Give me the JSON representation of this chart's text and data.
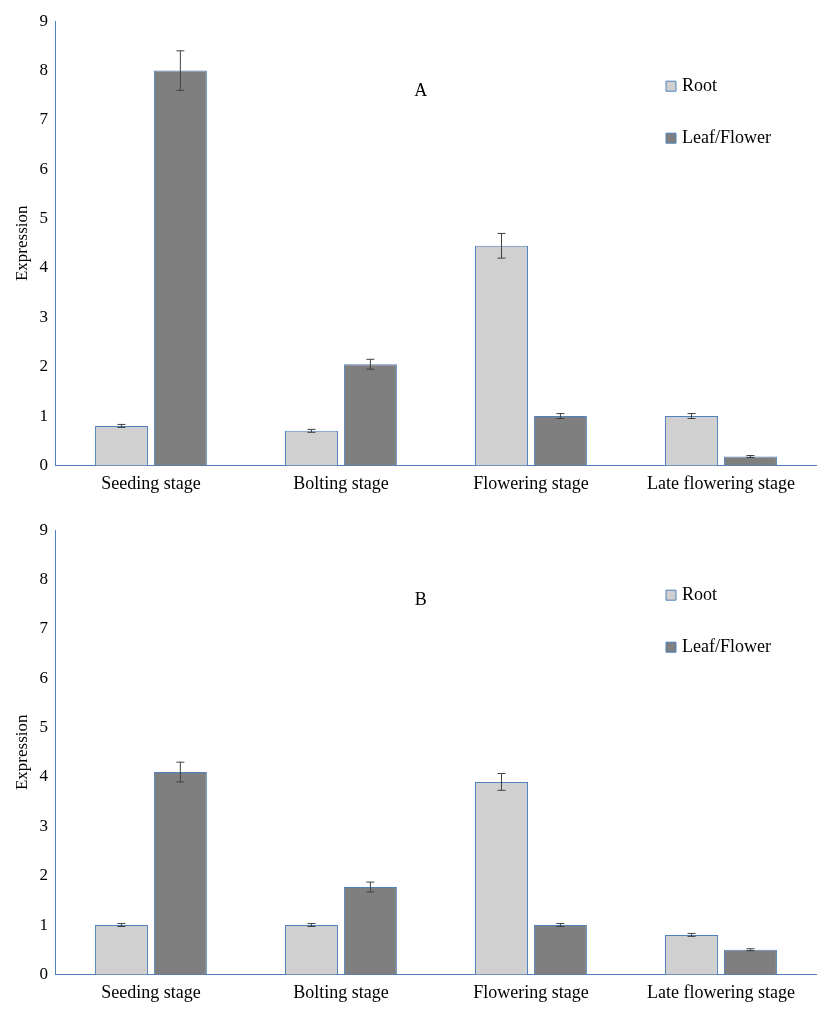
{
  "chart_data": [
    {
      "type": "bar",
      "title": "A",
      "ylabel": "Expression",
      "categories": [
        "Seeding stage",
        "Bolting stage",
        "Flowering stage",
        "Late flowering stage"
      ],
      "series": [
        {
          "name": "Root",
          "color": "#d0d0d0",
          "values": [
            0.8,
            0.7,
            4.45,
            1.0
          ],
          "errors": [
            0.03,
            0.03,
            0.25,
            0.05
          ]
        },
        {
          "name": "Leaf/Flower",
          "color": "#7f7f7f",
          "values": [
            8.0,
            2.05,
            1.0,
            0.18
          ],
          "errors": [
            0.4,
            0.1,
            0.05,
            0.02
          ]
        }
      ],
      "ylim": [
        0,
        9
      ],
      "yticks": [
        0,
        1,
        2,
        3,
        4,
        5,
        6,
        7,
        8,
        9
      ],
      "grid": false,
      "legend": "top right"
    },
    {
      "type": "bar",
      "title": "B",
      "ylabel": "Expression",
      "categories": [
        "Seeding stage",
        "Bolting stage",
        "Flowering stage",
        "Late flowering stage"
      ],
      "series": [
        {
          "name": "Root",
          "color": "#d0d0d0",
          "values": [
            1.0,
            1.0,
            3.9,
            0.8
          ],
          "errors": [
            0.03,
            0.03,
            0.17,
            0.03
          ]
        },
        {
          "name": "Leaf/Flower",
          "color": "#7f7f7f",
          "values": [
            4.1,
            1.77,
            1.0,
            0.5
          ],
          "errors": [
            0.2,
            0.1,
            0.03,
            0.02
          ]
        }
      ],
      "ylim": [
        0,
        9
      ],
      "yticks": [
        0,
        1,
        2,
        3,
        4,
        5,
        6,
        7,
        8,
        9
      ],
      "grid": false,
      "legend": "top right"
    }
  ]
}
